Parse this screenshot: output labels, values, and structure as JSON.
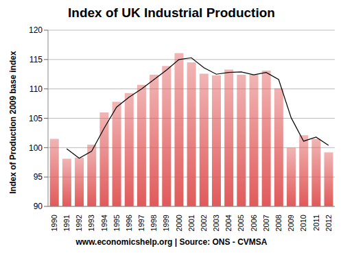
{
  "chart_data": {
    "type": "bar",
    "title": "Index of UK Industrial Production",
    "subtitle": "www.economicshelp.org | Source: ONS - CVMSA",
    "y_label": "Index of Production 2009 base index",
    "categories": [
      "1990",
      "1991",
      "1992",
      "1993",
      "1994",
      "1995",
      "1996",
      "1997",
      "1998",
      "1999",
      "2000",
      "2001",
      "2002",
      "2003",
      "2004",
      "2005",
      "2006",
      "2007",
      "2008",
      "2009",
      "2010",
      "2011",
      "2012"
    ],
    "series": [
      {
        "type": "bar",
        "color": "#e05a5a",
        "values": [
          101.5,
          98.1,
          98.3,
          100.5,
          106,
          107.8,
          109.3,
          110.7,
          112.4,
          113.9,
          116.1,
          114.5,
          112.6,
          112.3,
          113.3,
          112.4,
          112.4,
          113.1,
          110.1,
          100,
          102.1,
          101.5,
          99.2
        ]
      },
      {
        "type": "line",
        "color": "#000000",
        "values": [
          null,
          99.8,
          98.2,
          99.4,
          103.3,
          106.9,
          108.6,
          110,
          111.6,
          113.2,
          115,
          115.3,
          113.6,
          112.5,
          112.8,
          112.9,
          112.4,
          112.8,
          111.6,
          105.1,
          101.1,
          101.8,
          100.4
        ]
      }
    ],
    "ylim": [
      90,
      120
    ],
    "yticks": [
      90,
      95,
      100,
      105,
      110,
      115,
      120
    ],
    "grid": true
  }
}
